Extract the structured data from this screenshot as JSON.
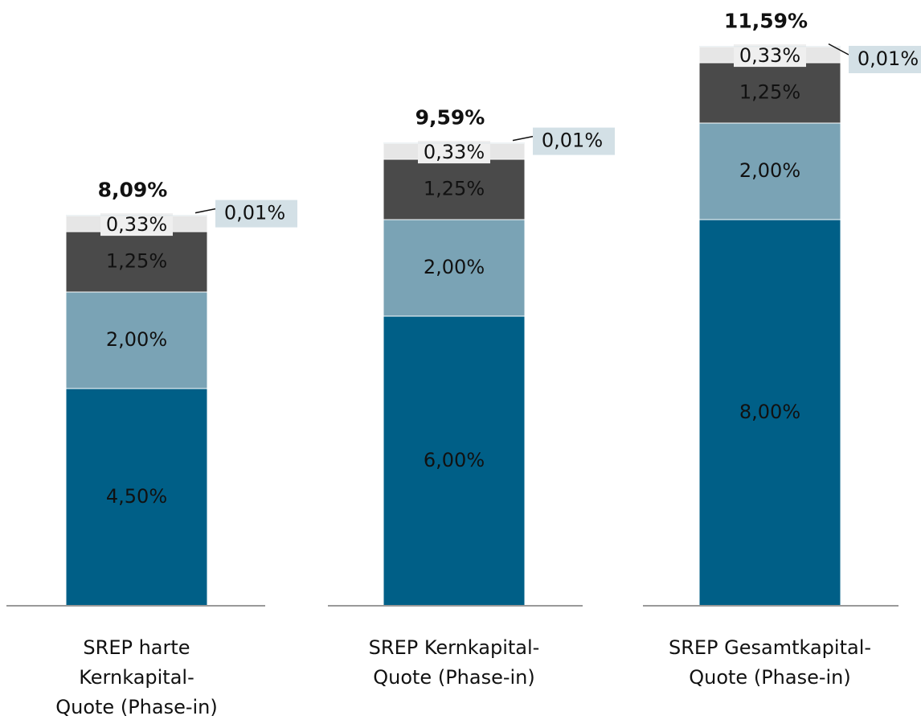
{
  "chart_data": {
    "type": "stacked-bar",
    "categories": [
      [
        "SREP harte",
        "Kernkapital-",
        "Quote (Phase-in)"
      ],
      [
        "SREP Kernkapital-",
        "Quote (Phase-in)"
      ],
      [
        "SREP Gesamtkapital-",
        "Quote (Phase-in)"
      ]
    ],
    "series": [
      {
        "color": "#005f87",
        "values": [
          4.5,
          6.0,
          8.0
        ],
        "value_labels": [
          "4,50%",
          "6,00%",
          "8,00%"
        ]
      },
      {
        "color": "#7aa3b5",
        "values": [
          2.0,
          2.0,
          2.0
        ],
        "value_labels": [
          "2,00%",
          "2,00%",
          "2,00%"
        ]
      },
      {
        "color": "#4a4a4a",
        "values": [
          1.25,
          1.25,
          1.25
        ],
        "value_labels": [
          "1,25%",
          "1,25%",
          "1,25%"
        ]
      },
      {
        "color": "#e6e6e6",
        "values": [
          0.33,
          0.33,
          0.33
        ],
        "value_labels": [
          "0,33%",
          "0,33%",
          "0,33%"
        ]
      },
      {
        "color": "#d3e0e6",
        "values": [
          0.01,
          0.01,
          0.01
        ],
        "value_labels": [
          "0,01%",
          "0,01%",
          "0,01%"
        ]
      }
    ],
    "totals": {
      "values": [
        8.09,
        9.59,
        11.59
      ],
      "value_labels": [
        "8,09%",
        "9,59%",
        "11,59%"
      ]
    },
    "ylim": [
      0,
      12.55
    ]
  }
}
